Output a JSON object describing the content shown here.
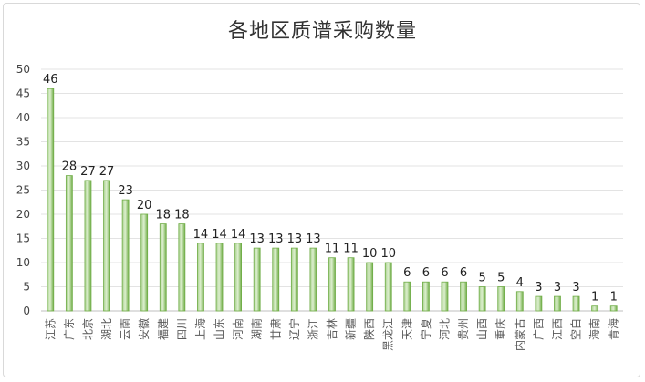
{
  "chart_data": {
    "type": "bar",
    "title": "各地区质谱采购数量",
    "categories": [
      "江苏",
      "广东",
      "北京",
      "湖北",
      "云南",
      "安徽",
      "福建",
      "四川",
      "上海",
      "山东",
      "河南",
      "湖南",
      "甘肃",
      "辽宁",
      "浙江",
      "吉林",
      "新疆",
      "陕西",
      "黑龙江",
      "天津",
      "宁夏",
      "河北",
      "贵州",
      "山西",
      "重庆",
      "内蒙古",
      "广西",
      "江西",
      "空白",
      "海南",
      "青海"
    ],
    "values": [
      46,
      28,
      27,
      27,
      23,
      20,
      18,
      18,
      14,
      14,
      14,
      13,
      13,
      13,
      13,
      11,
      11,
      10,
      10,
      6,
      6,
      6,
      6,
      5,
      5,
      4,
      3,
      3,
      3,
      1,
      1
    ],
    "yticks": [
      "0",
      "5",
      "10",
      "15",
      "20",
      "25",
      "30",
      "35",
      "40",
      "45",
      "50"
    ],
    "ylim": [
      0,
      50
    ],
    "grid": true,
    "legend": "none",
    "bar_color": "#70ad47"
  }
}
